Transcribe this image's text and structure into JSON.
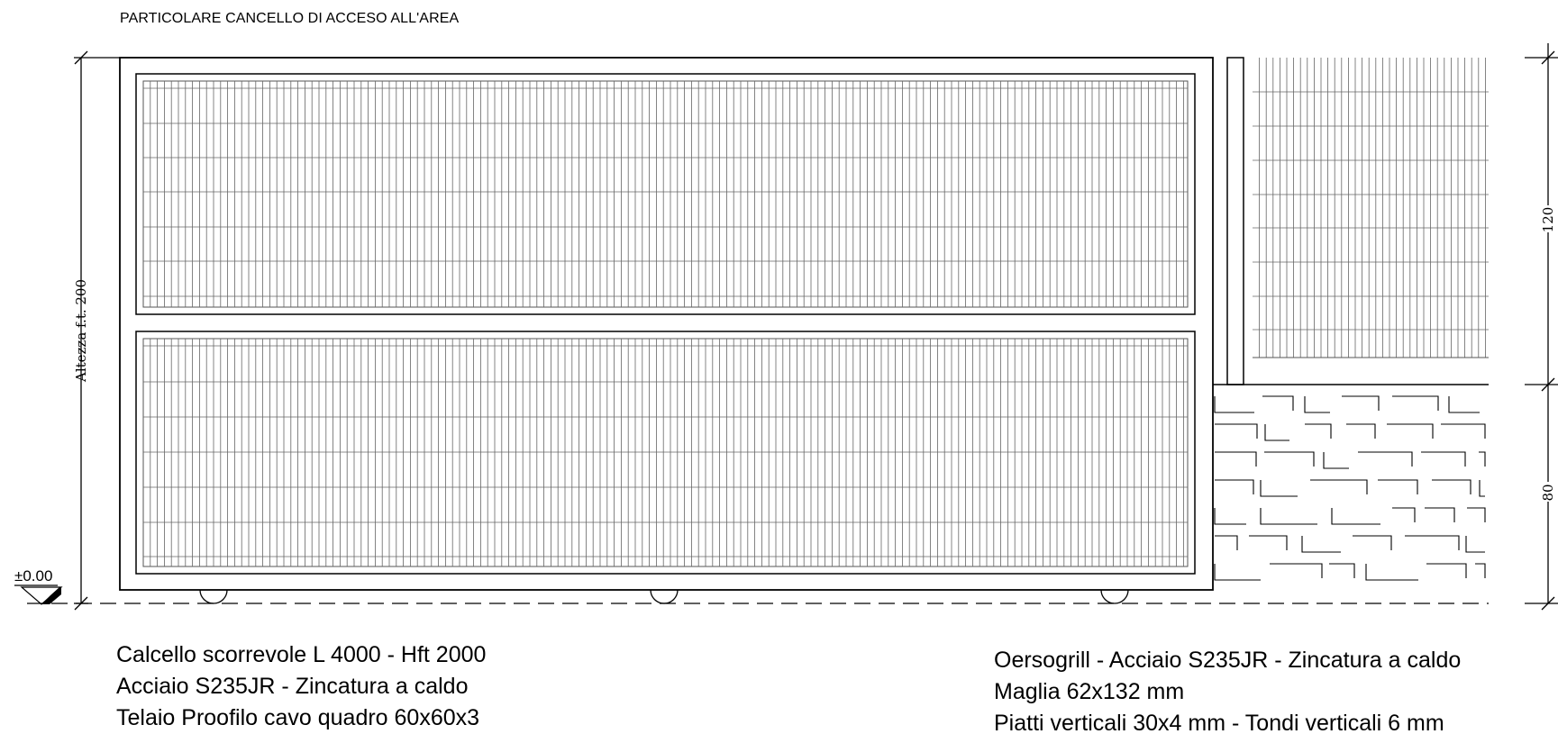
{
  "title": "PARTICOLARE CANCELLO DI ACCESO ALL'AREA",
  "dimensions": {
    "height_total": "Altezza f.t.  200",
    "upper_mesh": "120",
    "lower_wall": "80"
  },
  "level_mark": "±0.00",
  "gate_notes": [
    "Calcello scorrevole  L 4000 - Hft 2000",
    "Acciaio S235JR - Zincatura a caldo",
    "Telaio Proofilo cavo quadro 60x60x3"
  ],
  "grill_notes": [
    "Oersogrill - Acciaio S235JR - Zincatura a caldo",
    "Maglia 62x132 mm",
    "Piatti verticali 30x4 mm - Tondi verticali 6 mm"
  ],
  "colors": {
    "line": "#000000",
    "mesh": "#555555"
  }
}
